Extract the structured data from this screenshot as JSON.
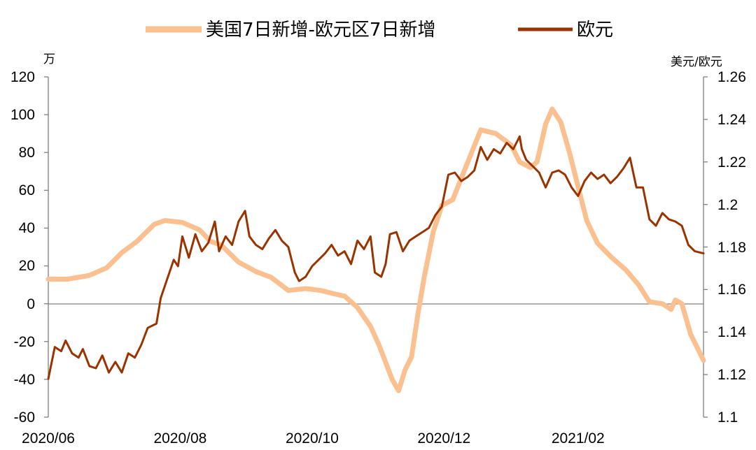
{
  "colors": {
    "spread_series": "#FAC090",
    "eur_series": "#993300",
    "axis": "#808080"
  },
  "chart_data": {
    "type": "line",
    "title": "",
    "legend": {
      "placement": "top-center",
      "entries": [
        "美国7日新增-欧元区7日新增",
        "欧元"
      ]
    },
    "left_axis": {
      "unit_label": "万",
      "range": [
        -60,
        120
      ],
      "ticks": [
        "120",
        "100",
        "80",
        "60",
        "40",
        "20",
        "0",
        "-20",
        "-40",
        "-60"
      ]
    },
    "right_axis": {
      "unit_label": "美元/欧元",
      "range": [
        1.1,
        1.26
      ],
      "ticks": [
        "1.26",
        "1.24",
        "1.22",
        "1.2",
        "1.18",
        "1.16",
        "1.14",
        "1.12",
        "1.1"
      ]
    },
    "x_axis": {
      "start": "2020-06-01",
      "end": "2021-03-31",
      "tick_labels": [
        {
          "date": "2020-06-01",
          "label": "2020/06"
        },
        {
          "date": "2020-08-01",
          "label": "2020/08"
        },
        {
          "date": "2020-10-01",
          "label": "2020/10"
        },
        {
          "date": "2020-12-01",
          "label": "2020/12"
        },
        {
          "date": "2021-02-01",
          "label": "2021/02"
        }
      ]
    },
    "series": [
      {
        "name": "美国7日新增-欧元区7日新增",
        "axis": "left",
        "points": [
          [
            "2020-06-01",
            13
          ],
          [
            "2020-06-10",
            13
          ],
          [
            "2020-06-20",
            15
          ],
          [
            "2020-06-28",
            19
          ],
          [
            "2020-07-05",
            27
          ],
          [
            "2020-07-12",
            33
          ],
          [
            "2020-07-20",
            42
          ],
          [
            "2020-07-25",
            44
          ],
          [
            "2020-08-02",
            43
          ],
          [
            "2020-08-10",
            39
          ],
          [
            "2020-08-15",
            33
          ],
          [
            "2020-08-20",
            31
          ],
          [
            "2020-08-28",
            22
          ],
          [
            "2020-09-05",
            17
          ],
          [
            "2020-09-12",
            14
          ],
          [
            "2020-09-20",
            7
          ],
          [
            "2020-09-28",
            8
          ],
          [
            "2020-10-05",
            7
          ],
          [
            "2020-10-12",
            5
          ],
          [
            "2020-10-16",
            4
          ],
          [
            "2020-10-22",
            -2
          ],
          [
            "2020-10-28",
            -12
          ],
          [
            "2020-11-01",
            -22
          ],
          [
            "2020-11-04",
            -31
          ],
          [
            "2020-11-07",
            -40
          ],
          [
            "2020-11-10",
            -46
          ],
          [
            "2020-11-13",
            -35
          ],
          [
            "2020-11-16",
            -28
          ],
          [
            "2020-11-19",
            -5
          ],
          [
            "2020-11-22",
            15
          ],
          [
            "2020-11-26",
            38
          ],
          [
            "2020-11-30",
            52
          ],
          [
            "2020-12-05",
            55
          ],
          [
            "2020-12-12",
            75
          ],
          [
            "2020-12-18",
            92
          ],
          [
            "2020-12-25",
            90
          ],
          [
            "2021-01-01",
            84
          ],
          [
            "2021-01-05",
            75
          ],
          [
            "2021-01-10",
            72
          ],
          [
            "2021-01-13",
            75
          ],
          [
            "2021-01-17",
            95
          ],
          [
            "2021-01-20",
            103
          ],
          [
            "2021-01-24",
            96
          ],
          [
            "2021-01-28",
            80
          ],
          [
            "2021-02-01",
            62
          ],
          [
            "2021-02-05",
            44
          ],
          [
            "2021-02-10",
            32
          ],
          [
            "2021-02-16",
            25
          ],
          [
            "2021-02-23",
            18
          ],
          [
            "2021-03-01",
            10
          ],
          [
            "2021-03-06",
            1
          ],
          [
            "2021-03-12",
            0
          ],
          [
            "2021-03-16",
            -3
          ],
          [
            "2021-03-18",
            2
          ],
          [
            "2021-03-21",
            0
          ],
          [
            "2021-03-25",
            -16
          ],
          [
            "2021-03-31",
            -30
          ]
        ]
      },
      {
        "name": "欧元",
        "axis": "right",
        "points": [
          [
            "2020-06-01",
            1.118
          ],
          [
            "2020-06-04",
            1.133
          ],
          [
            "2020-06-07",
            1.131
          ],
          [
            "2020-06-09",
            1.136
          ],
          [
            "2020-06-12",
            1.13
          ],
          [
            "2020-06-15",
            1.128
          ],
          [
            "2020-06-17",
            1.132
          ],
          [
            "2020-06-20",
            1.124
          ],
          [
            "2020-06-23",
            1.123
          ],
          [
            "2020-06-26",
            1.129
          ],
          [
            "2020-06-29",
            1.121
          ],
          [
            "2020-07-02",
            1.126
          ],
          [
            "2020-07-05",
            1.121
          ],
          [
            "2020-07-08",
            1.13
          ],
          [
            "2020-07-11",
            1.128
          ],
          [
            "2020-07-14",
            1.134
          ],
          [
            "2020-07-17",
            1.142
          ],
          [
            "2020-07-21",
            1.144
          ],
          [
            "2020-07-23",
            1.156
          ],
          [
            "2020-07-26",
            1.165
          ],
          [
            "2020-07-29",
            1.174
          ],
          [
            "2020-07-31",
            1.171
          ],
          [
            "2020-08-02",
            1.185
          ],
          [
            "2020-08-05",
            1.175
          ],
          [
            "2020-08-08",
            1.186
          ],
          [
            "2020-08-11",
            1.178
          ],
          [
            "2020-08-14",
            1.182
          ],
          [
            "2020-08-17",
            1.192
          ],
          [
            "2020-08-19",
            1.178
          ],
          [
            "2020-08-22",
            1.185
          ],
          [
            "2020-08-25",
            1.181
          ],
          [
            "2020-08-28",
            1.192
          ],
          [
            "2020-08-31",
            1.197
          ],
          [
            "2020-09-02",
            1.185
          ],
          [
            "2020-09-05",
            1.181
          ],
          [
            "2020-09-08",
            1.179
          ],
          [
            "2020-09-11",
            1.184
          ],
          [
            "2020-09-14",
            1.188
          ],
          [
            "2020-09-17",
            1.183
          ],
          [
            "2020-09-20",
            1.18
          ],
          [
            "2020-09-23",
            1.168
          ],
          [
            "2020-09-25",
            1.164
          ],
          [
            "2020-09-28",
            1.166
          ],
          [
            "2020-10-01",
            1.171
          ],
          [
            "2020-10-04",
            1.174
          ],
          [
            "2020-10-07",
            1.177
          ],
          [
            "2020-10-10",
            1.181
          ],
          [
            "2020-10-13",
            1.176
          ],
          [
            "2020-10-16",
            1.178
          ],
          [
            "2020-10-19",
            1.172
          ],
          [
            "2020-10-22",
            1.183
          ],
          [
            "2020-10-25",
            1.179
          ],
          [
            "2020-10-28",
            1.185
          ],
          [
            "2020-10-30",
            1.168
          ],
          [
            "2020-11-02",
            1.166
          ],
          [
            "2020-11-04",
            1.172
          ],
          [
            "2020-11-06",
            1.186
          ],
          [
            "2020-11-09",
            1.187
          ],
          [
            "2020-11-12",
            1.178
          ],
          [
            "2020-11-15",
            1.183
          ],
          [
            "2020-11-18",
            1.185
          ],
          [
            "2020-11-21",
            1.187
          ],
          [
            "2020-11-24",
            1.189
          ],
          [
            "2020-11-27",
            1.195
          ],
          [
            "2020-11-30",
            1.199
          ],
          [
            "2020-12-03",
            1.214
          ],
          [
            "2020-12-06",
            1.215
          ],
          [
            "2020-12-09",
            1.211
          ],
          [
            "2020-12-12",
            1.213
          ],
          [
            "2020-12-15",
            1.216
          ],
          [
            "2020-12-18",
            1.227
          ],
          [
            "2020-12-21",
            1.221
          ],
          [
            "2020-12-24",
            1.226
          ],
          [
            "2020-12-27",
            1.224
          ],
          [
            "2020-12-30",
            1.229
          ],
          [
            "2021-01-02",
            1.226
          ],
          [
            "2021-01-05",
            1.232
          ],
          [
            "2021-01-06",
            1.226
          ],
          [
            "2021-01-08",
            1.221
          ],
          [
            "2021-01-11",
            1.218
          ],
          [
            "2021-01-14",
            1.215
          ],
          [
            "2021-01-17",
            1.208
          ],
          [
            "2021-01-20",
            1.215
          ],
          [
            "2021-01-23",
            1.216
          ],
          [
            "2021-01-26",
            1.214
          ],
          [
            "2021-01-29",
            1.208
          ],
          [
            "2021-02-01",
            1.204
          ],
          [
            "2021-02-04",
            1.211
          ],
          [
            "2021-02-07",
            1.215
          ],
          [
            "2021-02-10",
            1.212
          ],
          [
            "2021-02-13",
            1.214
          ],
          [
            "2021-02-16",
            1.21
          ],
          [
            "2021-02-19",
            1.213
          ],
          [
            "2021-02-22",
            1.217
          ],
          [
            "2021-02-25",
            1.222
          ],
          [
            "2021-02-28",
            1.208
          ],
          [
            "2021-03-03",
            1.208
          ],
          [
            "2021-03-06",
            1.193
          ],
          [
            "2021-03-09",
            1.19
          ],
          [
            "2021-03-12",
            1.196
          ],
          [
            "2021-03-15",
            1.193
          ],
          [
            "2021-03-18",
            1.192
          ],
          [
            "2021-03-21",
            1.19
          ],
          [
            "2021-03-24",
            1.181
          ],
          [
            "2021-03-27",
            1.178
          ],
          [
            "2021-03-31",
            1.177
          ]
        ]
      }
    ]
  }
}
